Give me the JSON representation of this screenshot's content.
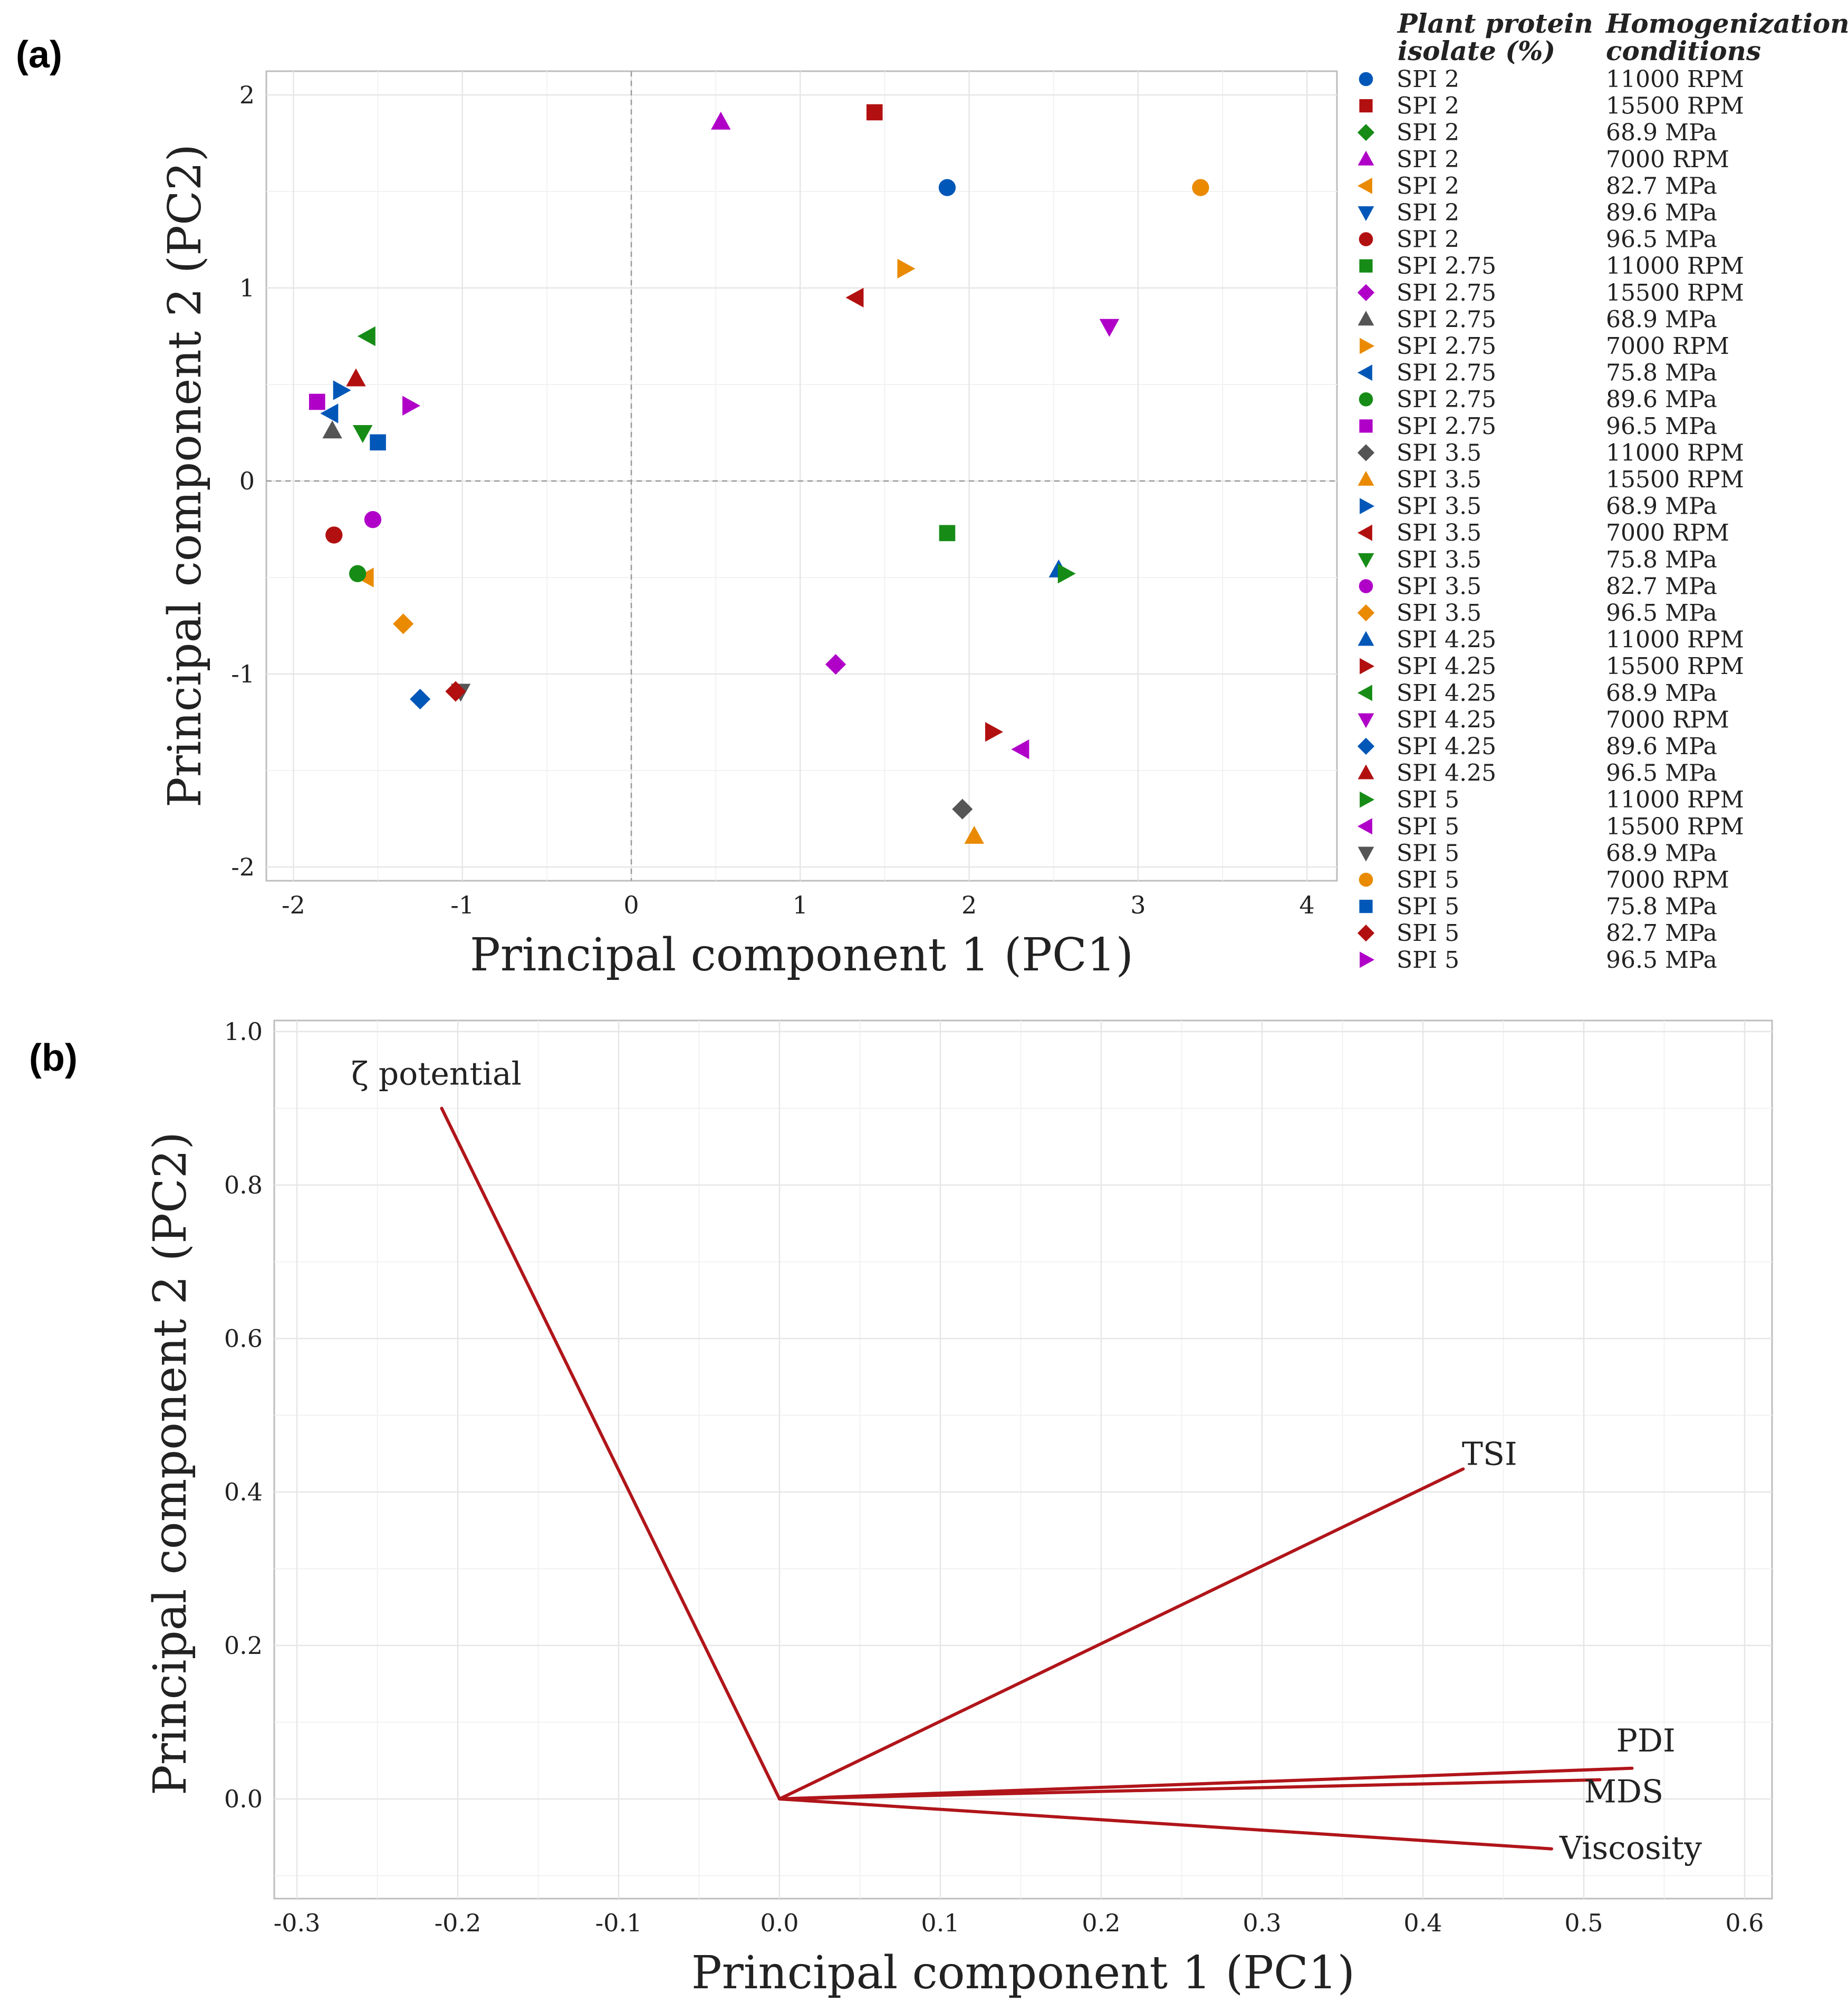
{
  "colors": {
    "blue": "#0057b8",
    "red": "#b21010",
    "green": "#168c16",
    "purple": "#b000c8",
    "orange": "#ea8a00",
    "gray": "#555555",
    "vector": "#b0151a"
  },
  "panel_a_label": "(a)",
  "panel_b_label": "(b)",
  "chart_data": [
    {
      "type": "scatter",
      "title": "",
      "xlabel": "Principal component 1 (PC1)",
      "ylabel": "Principal component 2 (PC2)",
      "xlim": [
        -2.2,
        4.1
      ],
      "ylim": [
        -2.08,
        2.2
      ],
      "xticks": [
        -2,
        -1,
        0,
        1,
        2,
        3,
        4
      ],
      "yticks": [
        -2,
        -1,
        0,
        1,
        2
      ],
      "reference_lines": {
        "x": 0,
        "y": 0
      },
      "legend": {
        "position": "right",
        "header_isolate": "Plant protein isolate (%)",
        "header_isolate_lines": [
          "Plant protein",
          "isolate (%)"
        ],
        "header_condition": "Homogenization conditions",
        "header_condition_lines": [
          "Homogenization",
          "conditions"
        ]
      },
      "series": [
        {
          "isolate": "SPI 2",
          "condition": "11000 RPM",
          "shape": "circle",
          "color": "blue",
          "x": 1.87,
          "y": 1.52
        },
        {
          "isolate": "SPI 2",
          "condition": "15500 RPM",
          "shape": "square",
          "color": "red",
          "x": 1.44,
          "y": 1.91
        },
        {
          "isolate": "SPI 2",
          "condition": "68.9 MPa",
          "shape": "diamond",
          "color": "green",
          "x": null,
          "y": null
        },
        {
          "isolate": "SPI 2",
          "condition": "7000 RPM",
          "shape": "triangle-up",
          "color": "purple",
          "x": 0.53,
          "y": 1.86
        },
        {
          "isolate": "SPI 2",
          "condition": "82.7 MPa",
          "shape": "triangle-left",
          "color": "orange",
          "x": -1.57,
          "y": -0.5
        },
        {
          "isolate": "SPI 2",
          "condition": "89.6 MPa",
          "shape": "triangle-down",
          "color": "blue",
          "x": null,
          "y": null
        },
        {
          "isolate": "SPI 2",
          "condition": "96.5 MPa",
          "shape": "circle",
          "color": "red",
          "x": -1.76,
          "y": -0.28
        },
        {
          "isolate": "SPI 2.75",
          "condition": "11000 RPM",
          "shape": "square",
          "color": "green",
          "x": 1.87,
          "y": -0.27
        },
        {
          "isolate": "SPI 2.75",
          "condition": "15500 RPM",
          "shape": "diamond",
          "color": "purple",
          "x": 1.21,
          "y": -0.95
        },
        {
          "isolate": "SPI 2.75",
          "condition": "68.9 MPa",
          "shape": "triangle-up",
          "color": "gray",
          "x": -1.77,
          "y": 0.26
        },
        {
          "isolate": "SPI 2.75",
          "condition": "7000 RPM",
          "shape": "triangle-right",
          "color": "orange",
          "x": 1.62,
          "y": 1.1
        },
        {
          "isolate": "SPI 2.75",
          "condition": "75.8 MPa",
          "shape": "triangle-left",
          "color": "blue",
          "x": -1.78,
          "y": 0.35
        },
        {
          "isolate": "SPI 2.75",
          "condition": "89.6 MPa",
          "shape": "circle",
          "color": "green",
          "x": -1.62,
          "y": -0.48
        },
        {
          "isolate": "SPI 2.75",
          "condition": "96.5 MPa",
          "shape": "square",
          "color": "purple",
          "x": -1.86,
          "y": 0.41
        },
        {
          "isolate": "SPI 3.5",
          "condition": "11000 RPM",
          "shape": "diamond",
          "color": "gray",
          "x": 1.96,
          "y": -1.7
        },
        {
          "isolate": "SPI 3.5",
          "condition": "15500 RPM",
          "shape": "triangle-up",
          "color": "orange",
          "x": 2.03,
          "y": -1.84
        },
        {
          "isolate": "SPI 3.5",
          "condition": "68.9 MPa",
          "shape": "triangle-right",
          "color": "blue",
          "x": -1.72,
          "y": 0.47
        },
        {
          "isolate": "SPI 3.5",
          "condition": "7000 RPM",
          "shape": "triangle-left",
          "color": "red",
          "x": 1.33,
          "y": 0.95
        },
        {
          "isolate": "SPI 3.5",
          "condition": "75.8 MPa",
          "shape": "triangle-down",
          "color": "green",
          "x": -1.59,
          "y": 0.25
        },
        {
          "isolate": "SPI 3.5",
          "condition": "82.7 MPa",
          "shape": "circle",
          "color": "purple",
          "x": -1.53,
          "y": -0.2
        },
        {
          "isolate": "SPI 3.5",
          "condition": "96.5 MPa",
          "shape": "diamond",
          "color": "orange",
          "x": -1.35,
          "y": -0.74
        },
        {
          "isolate": "SPI 4.25",
          "condition": "11000 RPM",
          "shape": "triangle-up",
          "color": "blue",
          "x": 2.53,
          "y": -0.46
        },
        {
          "isolate": "SPI 4.25",
          "condition": "15500 RPM",
          "shape": "triangle-right",
          "color": "red",
          "x": 2.14,
          "y": -1.3
        },
        {
          "isolate": "SPI 4.25",
          "condition": "68.9 MPa",
          "shape": "triangle-left",
          "color": "green",
          "x": -1.56,
          "y": 0.75
        },
        {
          "isolate": "SPI 4.25",
          "condition": "7000 RPM",
          "shape": "triangle-down",
          "color": "purple",
          "x": 2.83,
          "y": 0.8
        },
        {
          "isolate": "SPI 4.25",
          "condition": "89.6 MPa",
          "shape": "diamond",
          "color": "blue",
          "x": -1.25,
          "y": -1.13
        },
        {
          "isolate": "SPI 4.25",
          "condition": "96.5 MPa",
          "shape": "triangle-up",
          "color": "red",
          "x": -1.63,
          "y": 0.53
        },
        {
          "isolate": "SPI 5",
          "condition": "11000 RPM",
          "shape": "triangle-right",
          "color": "green",
          "x": 2.57,
          "y": -0.48
        },
        {
          "isolate": "SPI 5",
          "condition": "15500 RPM",
          "shape": "triangle-left",
          "color": "purple",
          "x": 2.31,
          "y": -1.39
        },
        {
          "isolate": "SPI 5",
          "condition": "68.9 MPa",
          "shape": "triangle-down",
          "color": "gray",
          "x": -1.01,
          "y": -1.09
        },
        {
          "isolate": "SPI 5",
          "condition": "7000 RPM",
          "shape": "circle",
          "color": "orange",
          "x": 3.37,
          "y": 1.52
        },
        {
          "isolate": "SPI 5",
          "condition": "75.8 MPa",
          "shape": "square",
          "color": "blue",
          "x": -1.5,
          "y": 0.2
        },
        {
          "isolate": "SPI 5",
          "condition": "82.7 MPa",
          "shape": "diamond",
          "color": "red",
          "x": -1.04,
          "y": -1.09
        },
        {
          "isolate": "SPI 5",
          "condition": "96.5 MPa",
          "shape": "triangle-right",
          "color": "purple",
          "x": -1.31,
          "y": 0.39
        }
      ]
    },
    {
      "type": "line",
      "subtype": "biplot-loadings",
      "title": "",
      "xlabel": "Principal component 1 (PC1)",
      "ylabel": "Principal component 2 (PC2)",
      "xlim": [
        -0.3,
        0.6
      ],
      "ylim": [
        -0.12,
        1.0
      ],
      "xticks": [
        -0.3,
        -0.2,
        -0.1,
        0.0,
        0.1,
        0.2,
        0.3,
        0.4,
        0.5,
        0.6
      ],
      "yticks": [
        0.0,
        0.2,
        0.4,
        0.6,
        0.8,
        1.0
      ],
      "tick_labels_x": [
        "-0.3",
        "-0.2",
        "-0.1",
        "0.0",
        "0.1",
        "0.2",
        "0.3",
        "0.4",
        "0.5",
        "0.6"
      ],
      "tick_labels_y": [
        "0.0",
        "0.2",
        "0.4",
        "0.6",
        "0.8",
        "1.0"
      ],
      "series": [
        {
          "name": "ζ potential",
          "x": -0.21,
          "y": 0.9
        },
        {
          "name": "TSI",
          "x": 0.425,
          "y": 0.43
        },
        {
          "name": "PDI",
          "x": 0.53,
          "y": 0.04
        },
        {
          "name": "MDS",
          "x": 0.51,
          "y": 0.025
        },
        {
          "name": "Viscosity",
          "x": 0.48,
          "y": -0.065
        }
      ]
    }
  ]
}
